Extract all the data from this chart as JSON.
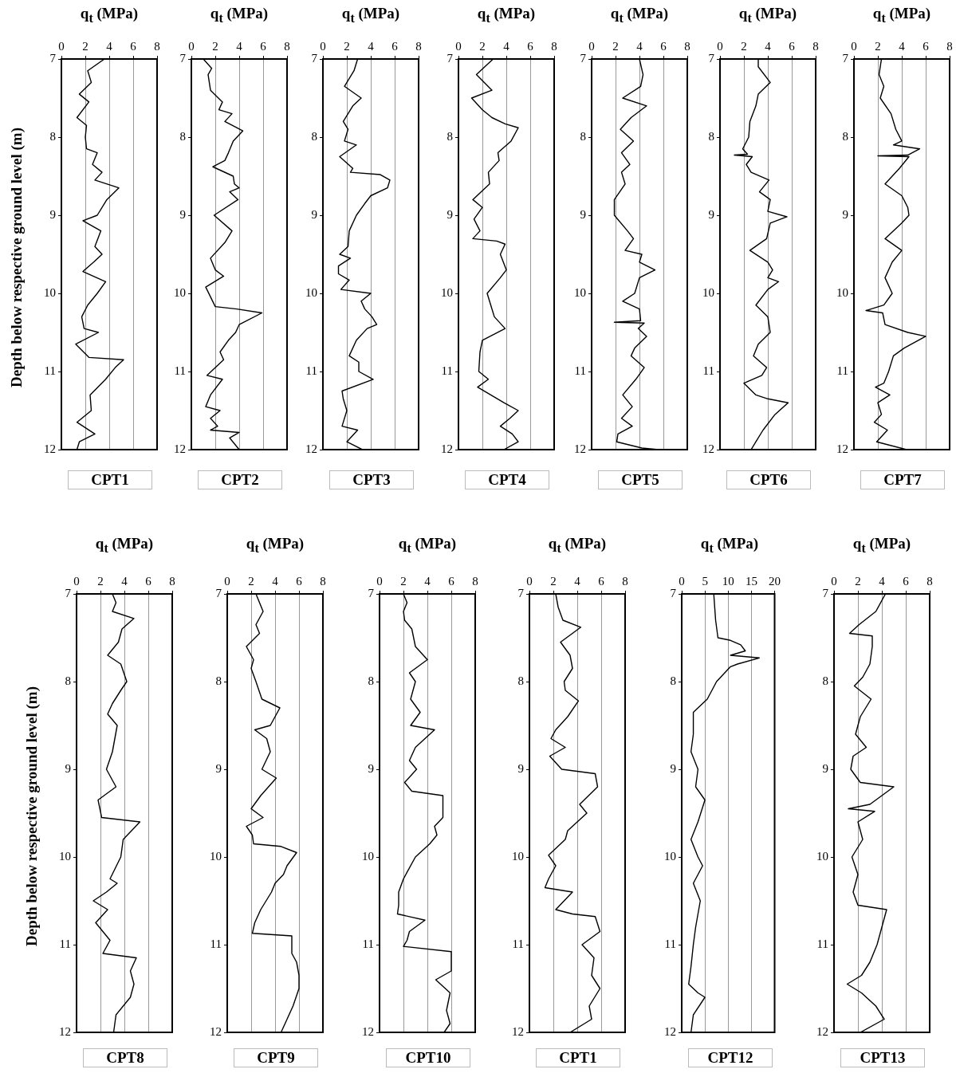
{
  "chart_data": [
    {
      "type": "line",
      "title": "CPT1",
      "xlabel": "q$_{t}$ (MPa)",
      "ylabel": "Depth below respective ground level (m)",
      "xlim": [
        0,
        8
      ],
      "xticks": [
        0,
        2,
        4,
        6,
        8
      ],
      "ylim": [
        12,
        7
      ],
      "yticks": [
        7,
        8,
        9,
        10,
        11,
        12
      ],
      "grid": "x",
      "marker": "none",
      "series": [
        {
          "color": "#000000",
          "x": [
            3.6,
            2.2,
            2.5,
            1.5,
            2.3,
            1.3,
            2.1,
            2.0,
            2.1,
            3.0,
            2.6,
            3.4,
            2.8,
            4.8,
            3.8,
            3.0,
            1.8,
            3.3,
            2.8,
            3.4,
            2.7,
            1.8,
            3.7,
            3.0,
            2.2,
            1.7,
            1.9,
            3.1,
            1.2,
            2.3,
            5.2,
            4.5,
            3.7,
            2.4,
            2.5,
            1.3,
            2.8,
            1.5,
            1.3
          ],
          "values": [
            7.0,
            7.15,
            7.3,
            7.45,
            7.55,
            7.75,
            7.85,
            8.0,
            8.15,
            8.2,
            8.35,
            8.45,
            8.55,
            8.65,
            8.8,
            9.0,
            9.07,
            9.2,
            9.4,
            9.5,
            9.6,
            9.72,
            9.85,
            10.0,
            10.15,
            10.3,
            10.45,
            10.5,
            10.65,
            10.82,
            10.85,
            10.95,
            11.1,
            11.3,
            11.5,
            11.65,
            11.8,
            11.9,
            12.0
          ]
        }
      ]
    },
    {
      "type": "line",
      "title": "CPT2",
      "xlabel": "q$_{t}$ (MPa)",
      "xlim": [
        0,
        8
      ],
      "xticks": [
        0,
        2,
        4,
        6,
        8
      ],
      "ylim": [
        12,
        7
      ],
      "yticks": [
        7,
        8,
        9,
        10,
        11,
        12
      ],
      "grid": "x",
      "marker": "none",
      "series": [
        {
          "color": "#000000",
          "x": [
            1.0,
            1.7,
            1.4,
            1.6,
            2.6,
            2.3,
            3.4,
            2.8,
            4.3,
            3.5,
            3.1,
            2.8,
            1.8,
            3.5,
            3.6,
            4.0,
            3.2,
            3.9,
            1.9,
            3.4,
            2.8,
            1.6,
            2.0,
            2.7,
            1.2,
            2.0,
            3.8,
            5.9,
            4.0,
            3.7,
            3.1,
            2.4,
            2.7,
            1.3,
            2.6,
            1.6,
            1.2,
            2.4,
            1.6,
            2.2,
            1.6,
            4.0,
            3.2,
            4.0
          ],
          "values": [
            7.0,
            7.12,
            7.2,
            7.4,
            7.55,
            7.65,
            7.7,
            7.8,
            7.92,
            8.05,
            8.2,
            8.3,
            8.38,
            8.5,
            8.6,
            8.65,
            8.7,
            8.8,
            9.0,
            9.2,
            9.35,
            9.55,
            9.7,
            9.78,
            9.92,
            10.17,
            10.2,
            10.25,
            10.4,
            10.5,
            10.6,
            10.75,
            10.85,
            11.05,
            11.1,
            11.3,
            11.45,
            11.5,
            11.6,
            11.7,
            11.75,
            11.78,
            11.85,
            12.0
          ]
        }
      ]
    },
    {
      "type": "line",
      "title": "CPT3",
      "xlabel": "q$_{t}$ (MPa)",
      "xlim": [
        0,
        8
      ],
      "xticks": [
        0,
        2,
        4,
        6,
        8
      ],
      "ylim": [
        12,
        7
      ],
      "yticks": [
        7,
        8,
        9,
        10,
        11,
        12
      ],
      "grid": "x",
      "marker": "none",
      "series": [
        {
          "color": "#000000",
          "x": [
            2.9,
            2.6,
            1.8,
            3.2,
            2.5,
            1.7,
            2.1,
            1.8,
            2.8,
            1.4,
            2.5,
            2.3,
            4.8,
            5.6,
            5.4,
            4.0,
            3.5,
            2.8,
            2.2,
            2.1,
            1.4,
            2.3,
            1.3,
            1.3,
            2.2,
            1.5,
            4.0,
            3.2,
            3.5,
            4.1,
            4.5,
            3.7,
            2.8,
            2.2,
            3.0,
            3.0,
            4.2,
            1.6,
            1.7,
            2.0,
            1.6,
            2.9,
            2.0,
            3.3
          ],
          "values": [
            7.0,
            7.15,
            7.35,
            7.5,
            7.6,
            7.8,
            7.9,
            8.05,
            8.1,
            8.25,
            8.4,
            8.45,
            8.48,
            8.55,
            8.65,
            8.75,
            8.85,
            9.0,
            9.2,
            9.4,
            9.5,
            9.55,
            9.65,
            9.75,
            9.83,
            9.95,
            10.0,
            10.1,
            10.2,
            10.3,
            10.4,
            10.45,
            10.6,
            10.8,
            10.88,
            11.0,
            11.1,
            11.25,
            11.35,
            11.5,
            11.7,
            11.75,
            11.9,
            12.0
          ]
        }
      ]
    },
    {
      "type": "line",
      "title": "CPT4",
      "xlabel": "q$_{t}$ (MPa)",
      "xlim": [
        0,
        8
      ],
      "xticks": [
        0,
        2,
        4,
        6,
        8
      ],
      "ylim": [
        12,
        7
      ],
      "yticks": [
        7,
        8,
        9,
        10,
        11,
        12
      ],
      "grid": "x",
      "marker": "none",
      "series": [
        {
          "color": "#000000",
          "x": [
            2.9,
            1.5,
            2.8,
            1.1,
            2.0,
            2.8,
            3.9,
            5.0,
            4.4,
            3.3,
            3.4,
            2.5,
            2.6,
            1.2,
            2.0,
            1.3,
            1.8,
            1.2,
            3.2,
            3.9,
            3.5,
            4.0,
            3.5,
            2.4,
            2.7,
            3.0,
            3.9,
            2.0,
            1.8,
            1.7,
            2.5,
            1.6,
            3.8,
            5.0,
            4.3,
            3.5,
            4.5,
            5.0,
            3.8
          ],
          "values": [
            7.0,
            7.2,
            7.4,
            7.5,
            7.65,
            7.75,
            7.83,
            7.88,
            8.05,
            8.2,
            8.3,
            8.45,
            8.6,
            8.8,
            8.9,
            9.05,
            9.2,
            9.3,
            9.33,
            9.37,
            9.5,
            9.7,
            9.8,
            10.0,
            10.15,
            10.3,
            10.45,
            10.6,
            10.75,
            11.0,
            11.1,
            11.2,
            11.4,
            11.5,
            11.6,
            11.7,
            11.8,
            11.9,
            12.0
          ]
        }
      ]
    },
    {
      "type": "line",
      "title": "CPT5",
      "xlabel": "q$_{t}$ (MPa)",
      "xlim": [
        0,
        8
      ],
      "xticks": [
        0,
        2,
        4,
        6,
        8
      ],
      "ylim": [
        12,
        7
      ],
      "yticks": [
        7,
        8,
        9,
        10,
        11,
        12
      ],
      "grid": "x",
      "marker": "none",
      "series": [
        {
          "color": "#000000",
          "x": [
            4.0,
            4.3,
            4.1,
            2.6,
            4.6,
            3.3,
            2.4,
            3.5,
            2.5,
            3.2,
            2.5,
            2.8,
            1.9,
            1.9,
            3.0,
            3.5,
            2.8,
            4.2,
            4.0,
            5.3,
            4.0,
            3.6,
            2.6,
            4.0,
            4.1,
            1.9,
            4.4,
            3.9,
            4.6,
            3.6,
            3.3,
            4.4,
            3.7,
            2.6,
            3.4,
            2.5,
            3.4,
            2.2,
            2.1,
            4.2,
            5.6
          ],
          "values": [
            7.0,
            7.2,
            7.35,
            7.5,
            7.6,
            7.75,
            7.9,
            8.05,
            8.2,
            8.35,
            8.45,
            8.6,
            8.8,
            9.0,
            9.2,
            9.3,
            9.45,
            9.5,
            9.6,
            9.7,
            9.8,
            10.0,
            10.1,
            10.2,
            10.35,
            10.37,
            10.38,
            10.45,
            10.55,
            10.7,
            10.8,
            10.95,
            11.1,
            11.3,
            11.45,
            11.6,
            11.7,
            11.8,
            11.9,
            11.98,
            12.0
          ]
        }
      ]
    },
    {
      "type": "line",
      "title": "CPT6",
      "xlabel": "q$_{t}$ (MPa)",
      "xlim": [
        0,
        8
      ],
      "xticks": [
        0,
        2,
        4,
        6,
        8
      ],
      "ylim": [
        12,
        7
      ],
      "yticks": [
        7,
        8,
        9,
        10,
        11,
        12
      ],
      "grid": "x",
      "marker": "none",
      "series": [
        {
          "color": "#000000",
          "x": [
            3.2,
            3.2,
            4.2,
            3.2,
            3.0,
            2.5,
            2.4,
            1.9,
            2.3,
            1.2,
            2.7,
            2.2,
            2.6,
            4.1,
            3.3,
            4.2,
            4.0,
            5.6,
            4.2,
            3.9,
            2.5,
            4.0,
            4.4,
            4.0,
            4.9,
            4.0,
            3.0,
            4.0,
            4.2,
            3.2,
            2.8,
            3.9,
            3.5,
            2.0,
            3.0,
            4.0,
            5.7,
            4.6,
            3.6,
            3.0,
            2.6
          ],
          "values": [
            7.0,
            7.1,
            7.3,
            7.45,
            7.6,
            7.8,
            8.0,
            8.15,
            8.22,
            8.23,
            8.25,
            8.35,
            8.45,
            8.55,
            8.7,
            8.8,
            8.95,
            9.02,
            9.1,
            9.3,
            9.45,
            9.6,
            9.7,
            9.8,
            9.85,
            9.95,
            10.15,
            10.3,
            10.5,
            10.65,
            10.8,
            10.95,
            11.05,
            11.15,
            11.3,
            11.35,
            11.4,
            11.55,
            11.75,
            11.9,
            12.0
          ]
        }
      ]
    },
    {
      "type": "line",
      "title": "CPT7",
      "xlabel": "q$_{t}$ (MPa)",
      "xlim": [
        0,
        8
      ],
      "xticks": [
        0,
        2,
        4,
        6,
        8
      ],
      "ylim": [
        12,
        7
      ],
      "yticks": [
        7,
        8,
        9,
        10,
        11,
        12
      ],
      "grid": "x",
      "marker": "none",
      "series": [
        {
          "color": "#000000",
          "x": [
            2.3,
            2.1,
            2.5,
            2.2,
            3.1,
            3.5,
            4.0,
            3.3,
            5.5,
            4.5,
            2.0,
            4.6,
            3.8,
            2.6,
            4.0,
            4.5,
            4.6,
            4.0,
            2.6,
            4.0,
            3.2,
            2.6,
            3.2,
            2.5,
            1.0,
            2.4,
            2.6,
            4.5,
            6.0,
            4.2,
            3.3,
            2.9,
            2.5,
            1.8,
            3.0,
            2.0,
            2.3,
            1.7,
            2.8,
            1.9,
            4.4
          ],
          "values": [
            7.0,
            7.2,
            7.35,
            7.5,
            7.7,
            7.9,
            8.05,
            8.1,
            8.15,
            8.23,
            8.24,
            8.25,
            8.4,
            8.6,
            8.75,
            8.9,
            9.0,
            9.1,
            9.3,
            9.45,
            9.6,
            9.8,
            10.0,
            10.15,
            10.22,
            10.25,
            10.4,
            10.5,
            10.55,
            10.7,
            10.8,
            11.0,
            11.15,
            11.2,
            11.3,
            11.4,
            11.55,
            11.65,
            11.75,
            11.9,
            12.0
          ]
        }
      ]
    },
    {
      "type": "line",
      "title": "CPT8",
      "xlabel": "q$_{t}$ (MPa)",
      "ylabel": "Depth below respective ground level (m)",
      "xlim": [
        0,
        8
      ],
      "xticks": [
        0,
        2,
        4,
        6,
        8
      ],
      "ylim": [
        12,
        7
      ],
      "yticks": [
        7,
        8,
        9,
        10,
        11,
        12
      ],
      "grid": "x",
      "marker": "none",
      "series": [
        {
          "color": "#000000",
          "x": [
            3.0,
            3.3,
            3.0,
            4.8,
            3.8,
            3.5,
            2.6,
            3.7,
            4.2,
            3.7,
            3.0,
            2.6,
            3.4,
            3.0,
            2.5,
            3.3,
            1.8,
            2.1,
            5.3,
            3.9,
            3.7,
            2.8,
            3.4,
            2.5,
            1.4,
            2.6,
            1.6,
            2.8,
            2.2,
            5.0,
            4.5,
            4.8,
            4.5,
            3.3,
            3.1
          ],
          "values": [
            7.0,
            7.1,
            7.2,
            7.28,
            7.4,
            7.55,
            7.7,
            7.8,
            8.0,
            8.1,
            8.25,
            8.37,
            8.5,
            8.8,
            9.0,
            9.2,
            9.35,
            9.55,
            9.6,
            9.8,
            10.0,
            10.25,
            10.3,
            10.4,
            10.5,
            10.6,
            10.75,
            10.95,
            11.1,
            11.15,
            11.3,
            11.45,
            11.6,
            11.8,
            12.0
          ]
        }
      ]
    },
    {
      "type": "line",
      "title": "CPT9",
      "xlabel": "q$_{t}$ (MPa)",
      "xlim": [
        0,
        8
      ],
      "xticks": [
        0,
        2,
        4,
        6,
        8
      ],
      "ylim": [
        12,
        7
      ],
      "yticks": [
        7,
        8,
        9,
        10,
        11,
        12
      ],
      "grid": "x",
      "marker": "none",
      "series": [
        {
          "color": "#000000",
          "x": [
            2.4,
            3.0,
            2.4,
            2.7,
            1.6,
            2.2,
            2.0,
            2.4,
            2.9,
            4.4,
            3.6,
            2.3,
            3.3,
            3.6,
            2.9,
            4.1,
            2.8,
            2.0,
            3.0,
            1.6,
            2.1,
            2.2,
            4.5,
            5.8,
            5.0,
            4.7,
            4.0,
            3.7,
            2.8,
            2.3,
            2.1,
            5.4,
            5.4,
            5.8,
            6.0,
            6.0,
            5.5,
            5.0,
            4.5
          ],
          "values": [
            7.0,
            7.2,
            7.35,
            7.45,
            7.6,
            7.75,
            7.85,
            8.0,
            8.2,
            8.3,
            8.5,
            8.55,
            8.65,
            8.8,
            9.0,
            9.1,
            9.3,
            9.45,
            9.55,
            9.65,
            9.75,
            9.85,
            9.88,
            9.95,
            10.1,
            10.2,
            10.3,
            10.4,
            10.6,
            10.75,
            10.87,
            10.9,
            11.1,
            11.2,
            11.35,
            11.5,
            11.7,
            11.85,
            12.0
          ]
        }
      ]
    },
    {
      "type": "line",
      "title": "CPT10",
      "xlabel": "q$_{t}$ (MPa)",
      "xlim": [
        0,
        8
      ],
      "xticks": [
        0,
        2,
        4,
        6,
        8
      ],
      "ylim": [
        12,
        7
      ],
      "yticks": [
        7,
        8,
        9,
        10,
        11,
        12
      ],
      "grid": "x",
      "marker": "none",
      "series": [
        {
          "color": "#000000",
          "x": [
            2.0,
            2.3,
            2.0,
            2.1,
            2.7,
            3.0,
            4.0,
            2.5,
            3.0,
            2.6,
            3.4,
            2.6,
            4.6,
            3.0,
            2.5,
            3.1,
            2.1,
            2.7,
            5.3,
            5.3,
            4.6,
            4.8,
            4.2,
            3.0,
            2.0,
            1.6,
            1.6,
            1.5,
            3.8,
            2.5,
            2.3,
            2.0,
            6.0,
            6.0,
            4.7,
            5.9,
            5.6,
            5.9,
            5.4
          ],
          "values": [
            7.0,
            7.1,
            7.2,
            7.3,
            7.4,
            7.6,
            7.75,
            7.9,
            8.0,
            8.2,
            8.35,
            8.5,
            8.55,
            8.75,
            8.9,
            9.0,
            9.15,
            9.25,
            9.3,
            9.55,
            9.65,
            9.75,
            9.85,
            10.0,
            10.25,
            10.4,
            10.55,
            10.65,
            10.72,
            10.85,
            10.95,
            11.02,
            11.08,
            11.3,
            11.4,
            11.55,
            11.75,
            11.9,
            12.0
          ]
        }
      ]
    },
    {
      "type": "line",
      "title": "CPT1",
      "xlabel": "q$_{t}$ (MPa)",
      "xlim": [
        0,
        8
      ],
      "xticks": [
        0,
        2,
        4,
        6,
        8
      ],
      "ylim": [
        12,
        7
      ],
      "yticks": [
        7,
        8,
        9,
        10,
        11,
        12
      ],
      "grid": "x",
      "marker": "none",
      "series": [
        {
          "color": "#000000",
          "x": [
            2.2,
            2.4,
            2.8,
            4.3,
            2.6,
            3.4,
            3.6,
            2.9,
            3.0,
            4.1,
            3.2,
            2.2,
            1.8,
            3.0,
            1.7,
            2.7,
            5.5,
            5.7,
            4.2,
            4.8,
            4.0,
            3.2,
            3.0,
            1.6,
            2.2,
            1.6,
            1.3,
            3.6,
            2.2,
            3.6,
            5.5,
            5.9,
            4.4,
            5.4,
            5.2,
            5.9,
            5.0,
            5.2,
            3.4
          ],
          "values": [
            7.0,
            7.15,
            7.3,
            7.38,
            7.55,
            7.7,
            7.85,
            8.0,
            8.1,
            8.22,
            8.4,
            8.55,
            8.65,
            8.75,
            8.85,
            9.0,
            9.05,
            9.2,
            9.4,
            9.5,
            9.6,
            9.7,
            9.8,
            9.98,
            10.1,
            10.25,
            10.35,
            10.4,
            10.6,
            10.65,
            10.68,
            10.85,
            11.0,
            11.15,
            11.35,
            11.5,
            11.7,
            11.85,
            12.0
          ]
        }
      ]
    },
    {
      "type": "line",
      "title": "CPT12",
      "xlabel": "q$_{t}$ (MPa)",
      "xlim": [
        0,
        20
      ],
      "xticks": [
        0,
        5,
        10,
        15,
        20
      ],
      "ylim": [
        12,
        7
      ],
      "yticks": [
        7,
        8,
        9,
        10,
        11,
        12
      ],
      "grid": "x",
      "marker": "none",
      "series": [
        {
          "color": "#000000",
          "x": [
            6.9,
            7.3,
            7.8,
            10.5,
            12.7,
            13.7,
            10.5,
            16.7,
            12.0,
            10.5,
            7.5,
            5.5,
            2.5,
            2.5,
            2.0,
            3.5,
            3.0,
            5.0,
            3.5,
            2.0,
            3.5,
            4.5,
            2.5,
            4.0,
            3.0,
            2.5,
            2.0,
            1.5,
            3.5,
            5.0,
            2.5,
            2.0
          ],
          "values": [
            7.0,
            7.3,
            7.5,
            7.53,
            7.58,
            7.65,
            7.7,
            7.73,
            7.8,
            7.83,
            8.0,
            8.2,
            8.35,
            8.6,
            8.8,
            9.0,
            9.2,
            9.35,
            9.6,
            9.8,
            10.0,
            10.1,
            10.3,
            10.5,
            10.8,
            11.0,
            11.25,
            11.45,
            11.55,
            11.6,
            11.8,
            12.0
          ]
        }
      ]
    },
    {
      "type": "line",
      "title": "CPT13",
      "xlabel": "q$_{t}$ (MPa)",
      "xlim": [
        0,
        8
      ],
      "xticks": [
        0,
        2,
        4,
        6,
        8
      ],
      "ylim": [
        12,
        7
      ],
      "yticks": [
        7,
        8,
        9,
        10,
        11,
        12
      ],
      "grid": "x",
      "marker": "none",
      "series": [
        {
          "color": "#000000",
          "x": [
            4.3,
            3.5,
            2.1,
            1.3,
            3.2,
            3.2,
            3.0,
            2.4,
            1.7,
            3.1,
            2.2,
            1.8,
            2.7,
            1.6,
            1.4,
            2.2,
            5.0,
            3.0,
            1.2,
            3.4,
            2.0,
            2.4,
            1.5,
            2.0,
            1.6,
            2.0,
            4.4,
            4.0,
            3.6,
            3.0,
            2.3,
            1.1,
            2.3,
            3.5,
            4.2,
            2.2
          ],
          "values": [
            7.0,
            7.2,
            7.35,
            7.45,
            7.48,
            7.6,
            7.8,
            7.95,
            8.05,
            8.2,
            8.4,
            8.6,
            8.75,
            8.85,
            9.0,
            9.15,
            9.2,
            9.4,
            9.45,
            9.48,
            9.6,
            9.8,
            10.0,
            10.2,
            10.4,
            10.55,
            10.6,
            10.8,
            11.0,
            11.2,
            11.35,
            11.45,
            11.55,
            11.7,
            11.85,
            12.0
          ]
        }
      ]
    }
  ]
}
